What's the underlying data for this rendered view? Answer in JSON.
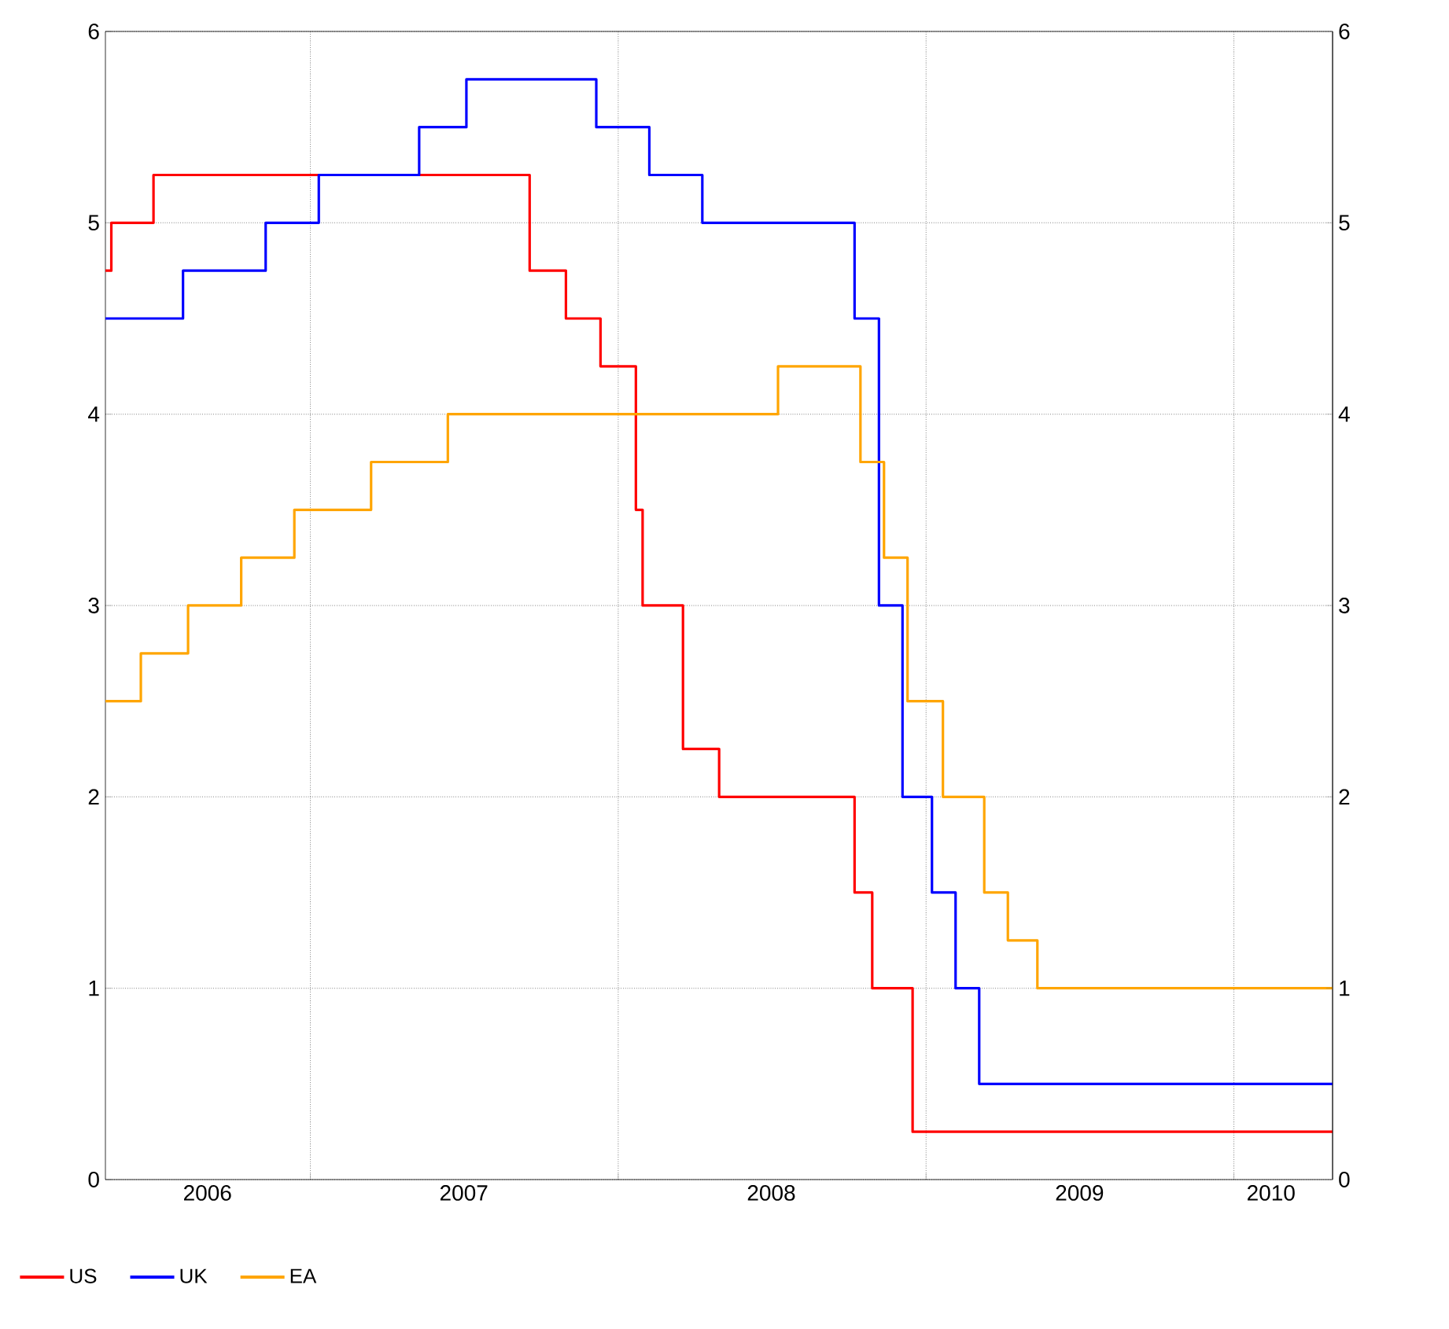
{
  "chart_data": {
    "type": "step",
    "xlim": [
      "2006-05-03",
      "2010-04-28"
    ],
    "xticks": [
      {
        "value": "2007-01-01",
        "label": null
      },
      {
        "value": "2008-01-01",
        "label": null
      },
      {
        "value": "2009-01-01",
        "label": null
      },
      {
        "value": "2010-01-01",
        "label": null
      },
      {
        "value": "2006-09-01",
        "label": "2006"
      },
      {
        "value": "2007-07-02",
        "label": "2007"
      },
      {
        "value": "2008-07-01",
        "label": "2008"
      },
      {
        "value": "2009-07-02",
        "label": "2009"
      },
      {
        "value": "2010-02-14",
        "label": "2010"
      }
    ],
    "ylim": [
      0,
      6
    ],
    "yticks": [
      0,
      1,
      2,
      3,
      4,
      5,
      6
    ],
    "y2lim": [
      0,
      6
    ],
    "y2ticks": [
      0,
      1,
      2,
      3,
      4,
      5,
      6
    ],
    "grid": true,
    "legend": "bottom left",
    "series": [
      {
        "name": "US",
        "color": "#ff0000",
        "x": [
          "2006-05-03",
          "2006-05-10",
          "2006-06-29",
          "2007-09-18",
          "2007-10-31",
          "2007-12-11",
          "2008-01-22",
          "2008-01-30",
          "2008-03-18",
          "2008-04-30",
          "2008-10-08",
          "2008-10-29",
          "2008-12-16",
          "2010-04-28"
        ],
        "values": [
          4.75,
          5.0,
          5.25,
          4.75,
          4.5,
          4.25,
          3.5,
          3.0,
          2.25,
          2.0,
          1.5,
          1.0,
          0.25,
          0.25
        ]
      },
      {
        "name": "UK",
        "color": "#0000ff",
        "x": [
          "2006-05-03",
          "2006-08-03",
          "2006-11-09",
          "2007-01-11",
          "2007-05-10",
          "2007-07-05",
          "2007-12-06",
          "2008-02-07",
          "2008-04-10",
          "2008-10-08",
          "2008-11-06",
          "2008-12-04",
          "2009-01-08",
          "2009-02-05",
          "2009-03-05",
          "2010-04-28"
        ],
        "values": [
          4.5,
          4.75,
          5.0,
          5.25,
          5.5,
          5.75,
          5.5,
          5.25,
          5.0,
          4.5,
          3.0,
          2.0,
          1.5,
          1.0,
          0.5,
          0.5
        ]
      },
      {
        "name": "EA",
        "color": "#ffa500",
        "x": [
          "2006-05-03",
          "2006-06-14",
          "2006-08-09",
          "2006-10-11",
          "2006-12-13",
          "2007-03-14",
          "2007-06-13",
          "2008-07-09",
          "2008-10-15",
          "2008-11-12",
          "2008-12-10",
          "2009-01-21",
          "2009-03-11",
          "2009-04-08",
          "2009-05-13",
          "2010-04-28"
        ],
        "values": [
          2.5,
          2.75,
          3.0,
          3.25,
          3.5,
          3.75,
          4.0,
          4.25,
          3.75,
          3.25,
          2.5,
          2.0,
          1.5,
          1.25,
          1.0,
          1.0
        ]
      }
    ]
  }
}
